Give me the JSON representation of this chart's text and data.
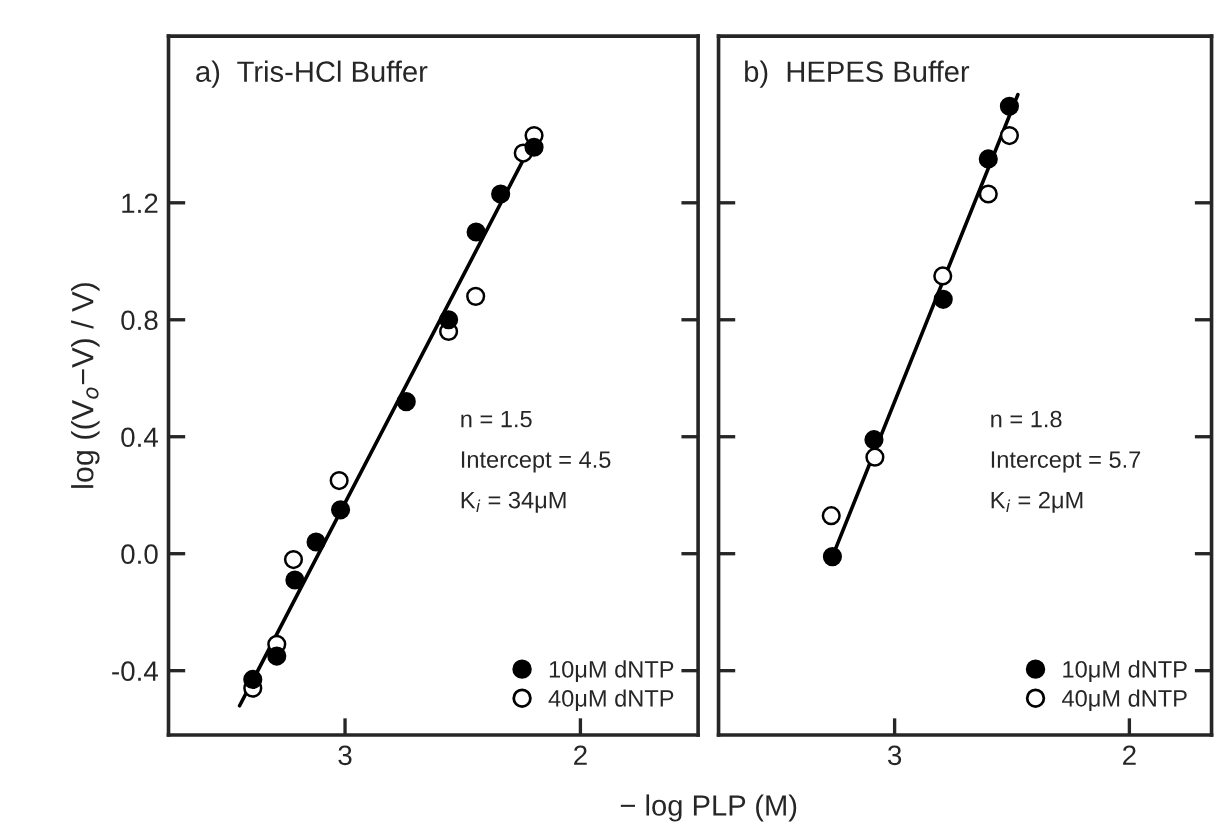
{
  "chart_data": [
    {
      "type": "scatter",
      "title": "a)  Tris-HCl Buffer",
      "xlabel": "− log PLP (M)",
      "ylabel": "log ((V$_{o}$−V) / V)",
      "xlim": [
        3.75,
        1.5
      ],
      "xticks": [
        3,
        2
      ],
      "ylim": [
        -0.62,
        1.77
      ],
      "yticks": [
        {
          "value": -0.4,
          "label": "-0.4"
        },
        {
          "value": 0.0,
          "label": "0.0"
        },
        0.4,
        0.8,
        1.2
      ],
      "marker": "circle",
      "legend": "bottom right",
      "grid": false,
      "annotations": [
        "n = 1.5",
        "Intercept = 4.5",
        "K$_{i}$ = 34μM"
      ],
      "series": [
        {
          "name": "10μM dNTP",
          "color": "#000000",
          "x": [
            3.392,
            3.29,
            3.213,
            3.123,
            3.019,
            2.74,
            2.56,
            2.443,
            2.339,
            2.197
          ],
          "values": [
            -0.43,
            -0.35,
            -0.09,
            0.04,
            0.15,
            0.52,
            0.8,
            1.1,
            1.23,
            1.39
          ]
        },
        {
          "name": "40μM dNTP",
          "color": "#ffffff",
          "x": [
            3.392,
            3.29,
            3.219,
            3.025,
            2.56,
            2.445,
            2.243,
            2.197
          ],
          "values": [
            -0.46,
            -0.31,
            -0.02,
            0.25,
            0.76,
            0.88,
            1.37,
            1.43
          ]
        },
        {
          "type": "line",
          "marker": "none",
          "color": "#000000",
          "x": [
            3.448,
            2.189
          ],
          "values": [
            -0.52,
            1.43
          ]
        }
      ]
    },
    {
      "type": "scatter",
      "title": "b)  HEPES Buffer",
      "xlim": [
        3.75,
        1.65
      ],
      "xticks": [
        3,
        2
      ],
      "ylim": [
        -0.62,
        1.77
      ],
      "yticks": [
        -0.4,
        0.0,
        0.4,
        0.8,
        1.2
      ],
      "tick_labels": "x",
      "marker": "circle",
      "legend": "bottom right",
      "grid": false,
      "annotations": [
        "n = 1.8",
        "Intercept = 5.7",
        "K$_{i}$ = 2μM"
      ],
      "series": [
        {
          "name": "10μM dNTP",
          "color": "#000000",
          "x": [
            3.265,
            3.088,
            2.793,
            2.601,
            2.511
          ],
          "values": [
            -0.01,
            0.39,
            0.87,
            1.35,
            1.53
          ]
        },
        {
          "name": "40μM dNTP",
          "color": "#ffffff",
          "x": [
            3.27,
            3.084,
            2.795,
            2.601,
            2.511
          ],
          "values": [
            0.13,
            0.33,
            0.95,
            1.23,
            1.43
          ]
        },
        {
          "type": "line",
          "marker": "none",
          "color": "#000000",
          "x": [
            3.265,
            2.475
          ],
          "values": [
            -0.01,
            1.57
          ]
        }
      ]
    }
  ]
}
